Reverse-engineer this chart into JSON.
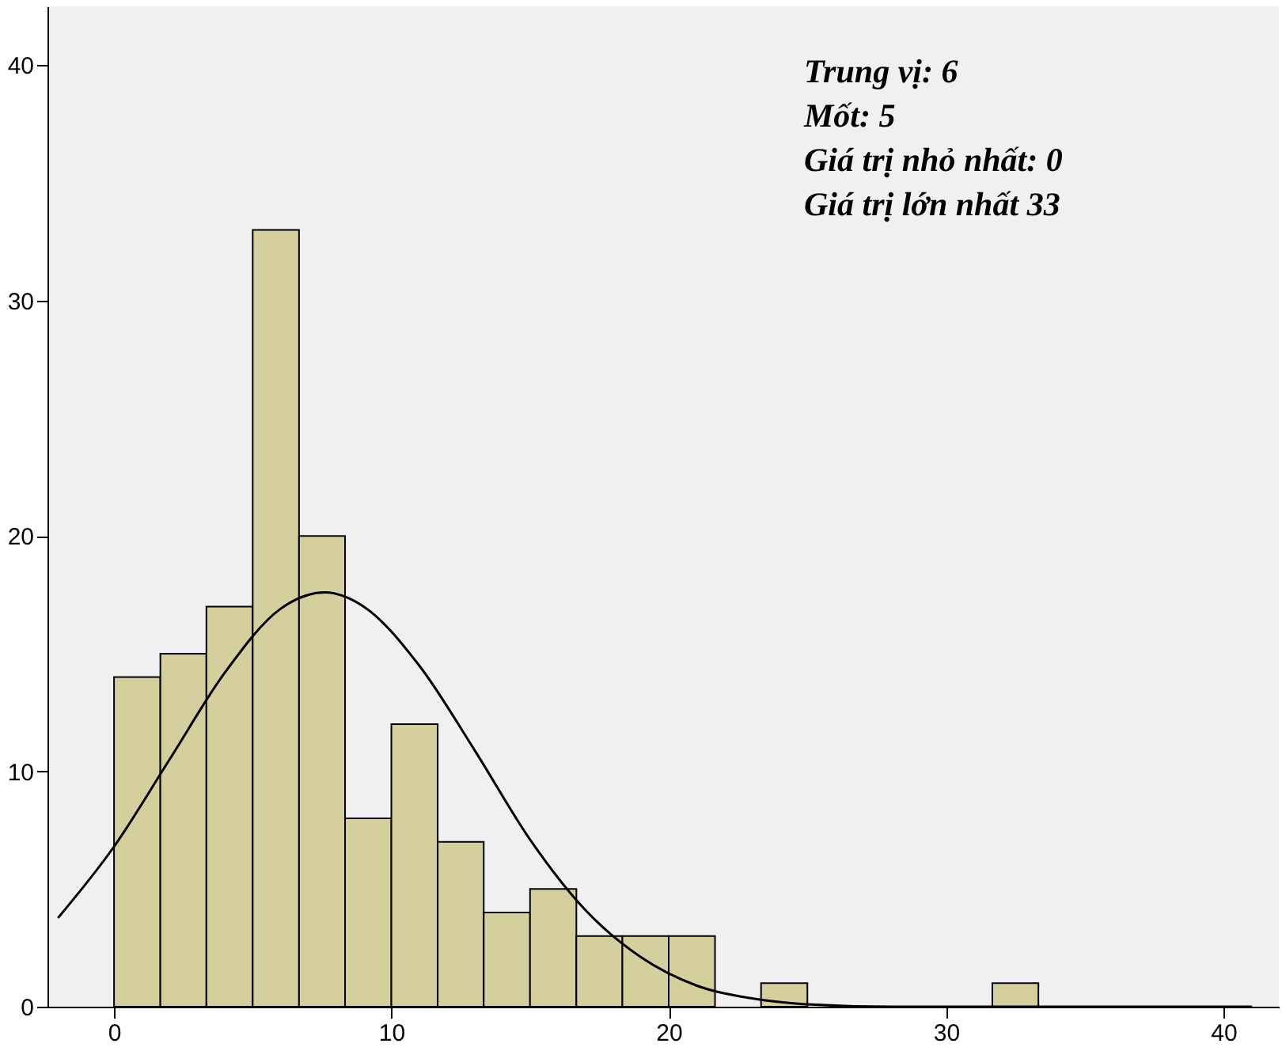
{
  "chart_data": {
    "type": "histogram",
    "bins": [
      0,
      1.67,
      3.33,
      5,
      6.67,
      8.33,
      10,
      11.67,
      13.33,
      15,
      16.67,
      18.33,
      20,
      21.67,
      23.33,
      25,
      26.67,
      28.33,
      30,
      31.67,
      33.33
    ],
    "values": [
      14,
      15,
      17,
      33,
      20,
      8,
      12,
      7,
      4,
      5,
      3,
      3,
      3,
      0,
      1,
      0,
      0,
      0,
      0,
      1
    ],
    "color": "#d4cf9c",
    "series": [
      {
        "type": "line",
        "color": "#000000",
        "x": [
          -2,
          0,
          2,
          4,
          6,
          7.6,
          9,
          11,
          13,
          15,
          17,
          19,
          21,
          23,
          25,
          28,
          34,
          41
        ],
        "values": [
          3.8,
          6.8,
          10.5,
          14.2,
          16.9,
          17.6,
          17,
          14.5,
          10.9,
          7.1,
          4.1,
          2.1,
          0.9,
          0.35,
          0.1,
          0,
          0,
          0
        ]
      }
    ],
    "xlim": [
      -2.4,
      42
    ],
    "ylim": [
      0,
      42.5
    ],
    "xticks": [
      0,
      10,
      20,
      30,
      40
    ],
    "yticks": [
      0,
      10,
      20,
      30,
      40
    ],
    "grid": false,
    "annotations": [
      "Trung vị: 6",
      "Mốt: 5",
      "Giá trị nhỏ nhất: 0",
      "Giá trị lớn nhất 33"
    ]
  }
}
